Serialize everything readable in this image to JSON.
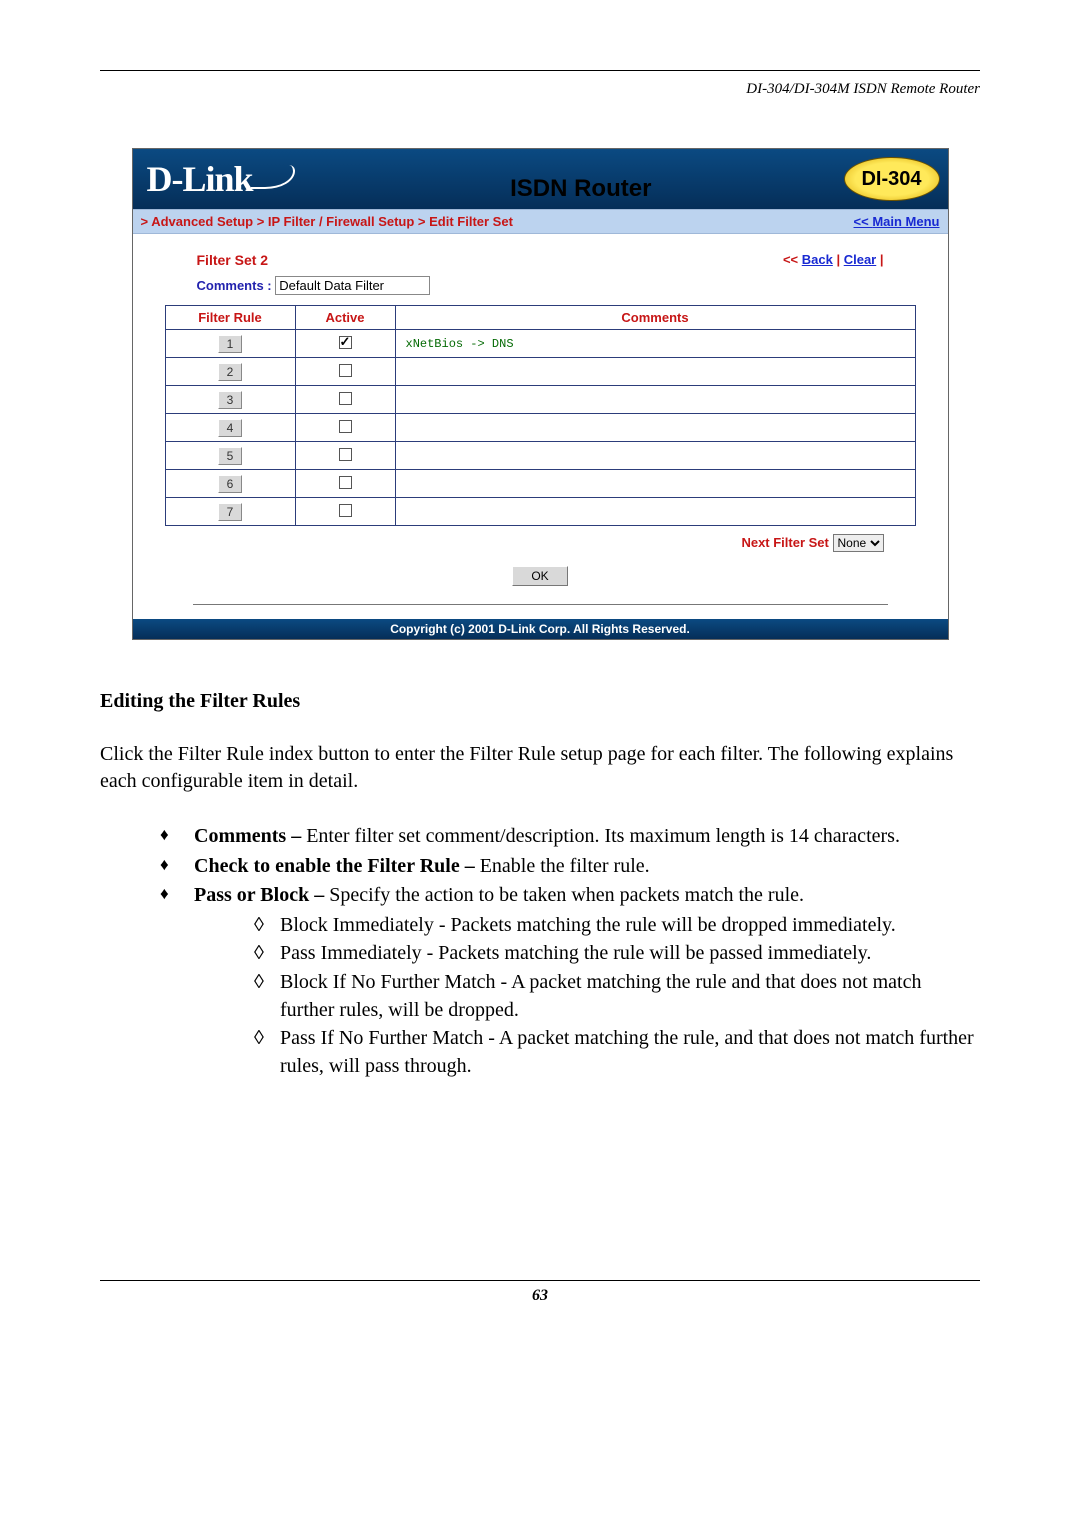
{
  "doc": {
    "header_text": "DI-304/DI-304M ISDN Remote Router",
    "page_number": "63",
    "section_heading": "Editing the Filter Rules",
    "intro_para": "Click the Filter Rule index button to enter the Filter Rule setup page for each filter. The following explains each configurable item in detail.",
    "bullets": {
      "b1_bold": "Comments –",
      "b1_rest": " Enter filter set comment/description. Its maximum length is 14 characters.",
      "b2_bold": "Check to enable the Filter Rule –",
      "b2_rest": " Enable the filter rule.",
      "b3_bold": "Pass or Block –",
      "b3_rest": " Specify the action to be taken when packets match the rule.",
      "sub1": "Block Immediately - Packets matching the rule will be dropped immediately.",
      "sub2": "Pass Immediately - Packets matching the rule will be passed immediately.",
      "sub3": "Block If No Further Match - A packet matching the rule and that does not match further rules, will be dropped.",
      "sub4": "Pass If No Further Match - A packet matching the rule, and that does not match further rules, will pass through."
    }
  },
  "ui": {
    "logo_text": "D-Link",
    "banner_title": "ISDN Router",
    "badge_text": "DI-304",
    "breadcrumb": "> Advanced Setup > IP Filter / Firewall Setup > Edit Filter Set",
    "main_menu_prefix": "<< ",
    "main_menu": "Main Menu",
    "filter_set_label": "Filter Set 2",
    "back_prefix": "<< ",
    "back_link": "Back",
    "pipe": " | ",
    "clear_link": "Clear",
    "comments_label": "Comments :",
    "comments_value": "Default Data Filter",
    "table": {
      "col1": "Filter Rule",
      "col2": "Active",
      "col3": "Comments",
      "rows": [
        {
          "rule": "1",
          "active": true,
          "comment": "xNetBios -> DNS"
        },
        {
          "rule": "2",
          "active": false,
          "comment": ""
        },
        {
          "rule": "3",
          "active": false,
          "comment": ""
        },
        {
          "rule": "4",
          "active": false,
          "comment": ""
        },
        {
          "rule": "5",
          "active": false,
          "comment": ""
        },
        {
          "rule": "6",
          "active": false,
          "comment": ""
        },
        {
          "rule": "7",
          "active": false,
          "comment": ""
        }
      ]
    },
    "next_filter_label": "Next Filter Set",
    "next_filter_value": "None",
    "ok_label": "OK",
    "copyright": "Copyright (c) 2001 D-Link Corp. All Rights Reserved."
  },
  "colors": {
    "accent_red": "#c71616",
    "link_blue": "#1829d2",
    "banner_bg": "#0b4a82",
    "breadcrumb_bg": "#bcd3ef"
  }
}
